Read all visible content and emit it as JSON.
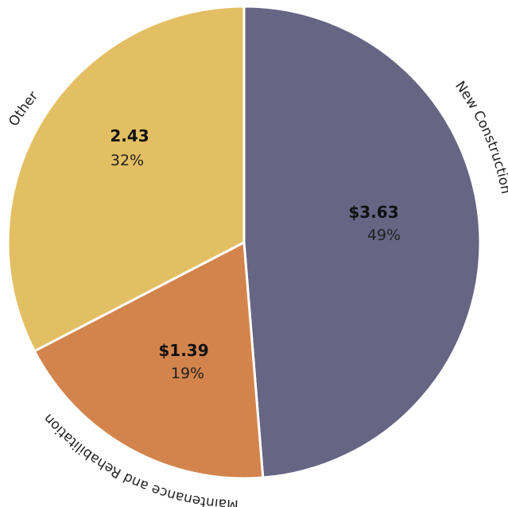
{
  "chart_data": {
    "type": "pie",
    "title": "",
    "slices": [
      {
        "name": "New Construction",
        "value_label": "$3.63",
        "value": 3.63,
        "percent_label": "49%",
        "percent": 49,
        "color": "#666584"
      },
      {
        "name": "Maintenance and Rehabilitation",
        "value_label": "$1.39",
        "value": 1.39,
        "percent_label": "19%",
        "percent": 19,
        "color": "#d3844c"
      },
      {
        "name": "Other",
        "value_label": "2.43",
        "value": 2.43,
        "percent_label": "32%",
        "percent": 32,
        "color": "#e3bf63"
      }
    ],
    "legend": "none"
  }
}
